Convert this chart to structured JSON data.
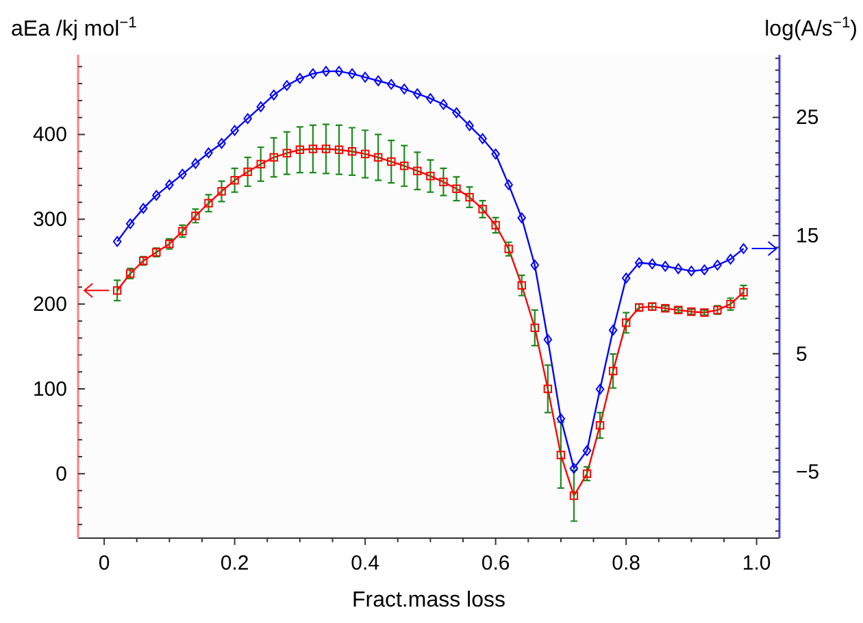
{
  "chart_data": {
    "type": "line",
    "xlabel": "Fract.mass loss",
    "ylabel": "aEa /kj mol$^{−1}$",
    "y2label": "log(A/s$^{−1}$)",
    "x": [
      0.02,
      0.04,
      0.06,
      0.08,
      0.1,
      0.12,
      0.14,
      0.16,
      0.18,
      0.2,
      0.22,
      0.24,
      0.26,
      0.28,
      0.3,
      0.32,
      0.34,
      0.36,
      0.38,
      0.4,
      0.42,
      0.44,
      0.46,
      0.48,
      0.5,
      0.52,
      0.54,
      0.56,
      0.58,
      0.6,
      0.62,
      0.64,
      0.66,
      0.68,
      0.7,
      0.72,
      0.74,
      0.76,
      0.78,
      0.8,
      0.82,
      0.84,
      0.86,
      0.88,
      0.9,
      0.92,
      0.94,
      0.96,
      0.98
    ],
    "series": [
      {
        "color": "#ff0000",
        "marker": "square",
        "axis": "y",
        "values": [
          216,
          236,
          251,
          261,
          271,
          286,
          304,
          319,
          333,
          346,
          356,
          365,
          373,
          378,
          382,
          383,
          383,
          382,
          380,
          377,
          373,
          368,
          363,
          357,
          351,
          344,
          336,
          326,
          312,
          293,
          265,
          222,
          172,
          100,
          22,
          -26,
          0,
          57,
          121,
          178,
          196,
          197,
          195,
          193,
          191,
          190,
          193,
          200,
          214
        ],
        "errors": [
          12,
          6,
          5,
          5,
          6,
          7,
          8,
          10,
          12,
          14,
          17,
          20,
          23,
          25,
          27,
          28,
          29,
          29,
          28,
          28,
          27,
          25,
          24,
          22,
          19,
          16,
          14,
          12,
          10,
          9,
          8,
          12,
          21,
          28,
          39,
          30,
          8,
          15,
          20,
          12,
          4,
          4,
          3,
          3,
          3,
          3,
          5,
          7,
          8
        ]
      },
      {
        "color": "#0000ff",
        "marker": "diamond",
        "axis": "y2",
        "values": [
          14.5,
          16.0,
          17.3,
          18.4,
          19.3,
          20.2,
          21.1,
          22.0,
          22.8,
          23.9,
          24.9,
          25.9,
          26.9,
          27.7,
          28.3,
          28.7,
          28.9,
          28.9,
          28.7,
          28.4,
          28.1,
          27.8,
          27.4,
          27.0,
          26.6,
          26.1,
          25.4,
          24.3,
          23.2,
          21.9,
          19.3,
          16.5,
          12.5,
          6.2,
          -0.5,
          -4.7,
          -3.2,
          2.0,
          7.0,
          11.4,
          12.7,
          12.6,
          12.4,
          12.2,
          12.0,
          12.1,
          12.5,
          13.0,
          13.9
        ]
      }
    ],
    "xlim": [
      -0.04,
      1.035
    ],
    "xticks": [
      0,
      {
        "value": 0.05,
        "label": null
      },
      0.2,
      {
        "value": 0.1,
        "label": null
      },
      {
        "value": 0.15,
        "label": null
      },
      {
        "value": 0.25,
        "label": null
      },
      {
        "value": 0.3,
        "label": null
      },
      {
        "value": 0.35,
        "label": null
      },
      0.4,
      {
        "value": 0.45,
        "label": null
      },
      {
        "value": 0.5,
        "label": null
      },
      {
        "value": 0.55,
        "label": null
      },
      0.6,
      {
        "value": 0.65,
        "label": null
      },
      {
        "value": 0.7,
        "label": null
      },
      {
        "value": 0.75,
        "label": null
      },
      0.8,
      {
        "value": 0.85,
        "label": null
      },
      {
        "value": 0.9,
        "label": null
      },
      {
        "value": 0.95,
        "label": null
      },
      {
        "value": 1,
        "label": "1.0"
      }
    ],
    "ylim": [
      -76,
      494
    ],
    "yticks": [
      {
        "value": -60,
        "label": null
      },
      {
        "value": -40,
        "label": null
      },
      {
        "value": -20,
        "label": null
      },
      0,
      {
        "value": 20,
        "label": null
      },
      {
        "value": 40,
        "label": null
      },
      {
        "value": 60,
        "label": null
      },
      {
        "value": 80,
        "label": null
      },
      100,
      {
        "value": 120,
        "label": null
      },
      {
        "value": 140,
        "label": null
      },
      {
        "value": 160,
        "label": null
      },
      {
        "value": 180,
        "label": null
      },
      200,
      {
        "value": 220,
        "label": null
      },
      {
        "value": 240,
        "label": null
      },
      {
        "value": 260,
        "label": null
      },
      {
        "value": 280,
        "label": null
      },
      300,
      {
        "value": 320,
        "label": null
      },
      {
        "value": 340,
        "label": null
      },
      {
        "value": 360,
        "label": null
      },
      {
        "value": 380,
        "label": null
      },
      400,
      {
        "value": 420,
        "label": null
      },
      {
        "value": 440,
        "label": null
      },
      {
        "value": 460,
        "label": null
      },
      {
        "value": 480,
        "label": null
      }
    ],
    "y2lim": [
      -10.6,
      30.3
    ],
    "y2ticks": [
      {
        "value": -10,
        "label": null
      },
      {
        "value": -9,
        "label": null
      },
      {
        "value": -8,
        "label": null
      },
      {
        "value": -7,
        "label": null
      },
      {
        "value": -6,
        "label": null
      },
      {
        "value": -5,
        "label": "−5"
      },
      {
        "value": -4,
        "label": null
      },
      {
        "value": -3,
        "label": null
      },
      {
        "value": -2,
        "label": null
      },
      {
        "value": -1,
        "label": null
      },
      {
        "value": 0,
        "label": null
      },
      {
        "value": 1,
        "label": null
      },
      {
        "value": 2,
        "label": null
      },
      {
        "value": 3,
        "label": null
      },
      {
        "value": 4,
        "label": null
      },
      5,
      {
        "value": 6,
        "label": null
      },
      {
        "value": 7,
        "label": null
      },
      {
        "value": 8,
        "label": null
      },
      {
        "value": 9,
        "label": null
      },
      {
        "value": 10,
        "label": null
      },
      {
        "value": 11,
        "label": null
      },
      {
        "value": 12,
        "label": null
      },
      {
        "value": 13,
        "label": null
      },
      {
        "value": 14,
        "label": null
      },
      15,
      {
        "value": 16,
        "label": null
      },
      {
        "value": 17,
        "label": null
      },
      {
        "value": 18,
        "label": null
      },
      {
        "value": 19,
        "label": null
      },
      {
        "value": 20,
        "label": null
      },
      {
        "value": 21,
        "label": null
      },
      {
        "value": 22,
        "label": null
      },
      {
        "value": 23,
        "label": null
      },
      {
        "value": 24,
        "label": null
      },
      25,
      {
        "value": 26,
        "label": null
      },
      {
        "value": 27,
        "label": null
      },
      {
        "value": 28,
        "label": null
      },
      {
        "value": 29,
        "label": null
      },
      {
        "value": 30,
        "label": null
      }
    ],
    "grid": false
  }
}
